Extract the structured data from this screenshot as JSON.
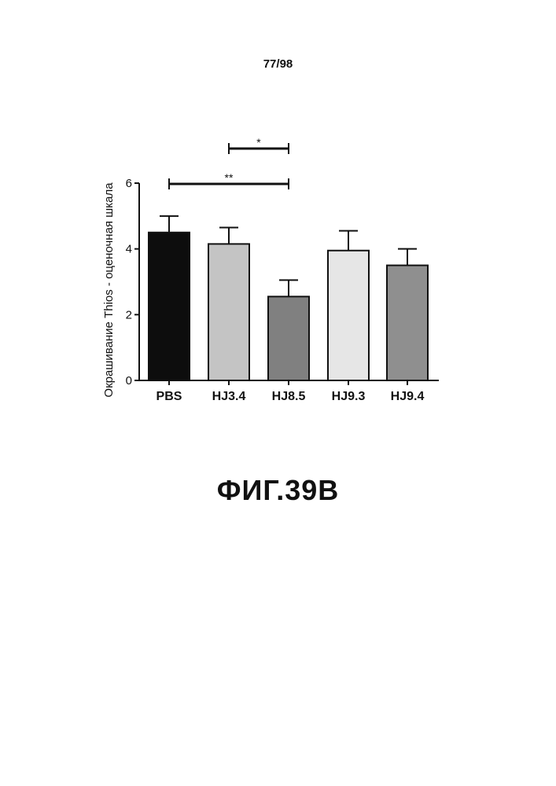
{
  "page": {
    "number": "77/98",
    "caption": "ФИГ.39B"
  },
  "colors": {
    "axis": "#111111",
    "error_bar": "#111111"
  },
  "chart_data": {
    "type": "bar",
    "ylabel": "Окрашивание Thios - оценочная шкала",
    "ylim": [
      0,
      6
    ],
    "yticks": [
      "0",
      "2",
      "4",
      "6"
    ],
    "categories": [
      "PBS",
      "HJ3.4",
      "HJ8.5",
      "HJ9.3",
      "HJ9.4"
    ],
    "values": [
      4.5,
      4.15,
      2.55,
      3.95,
      3.5
    ],
    "errors": [
      0.5,
      0.5,
      0.5,
      0.6,
      0.5
    ],
    "bar_fills": [
      "#0d0d0d",
      "#c4c4c4",
      "#808080",
      "#e6e6e6",
      "#8f8f8f"
    ],
    "significance": [
      {
        "label": "*",
        "from": "HJ3.4",
        "to": "HJ8.5"
      },
      {
        "label": "**",
        "from": "PBS",
        "to": "HJ8.5"
      }
    ]
  }
}
